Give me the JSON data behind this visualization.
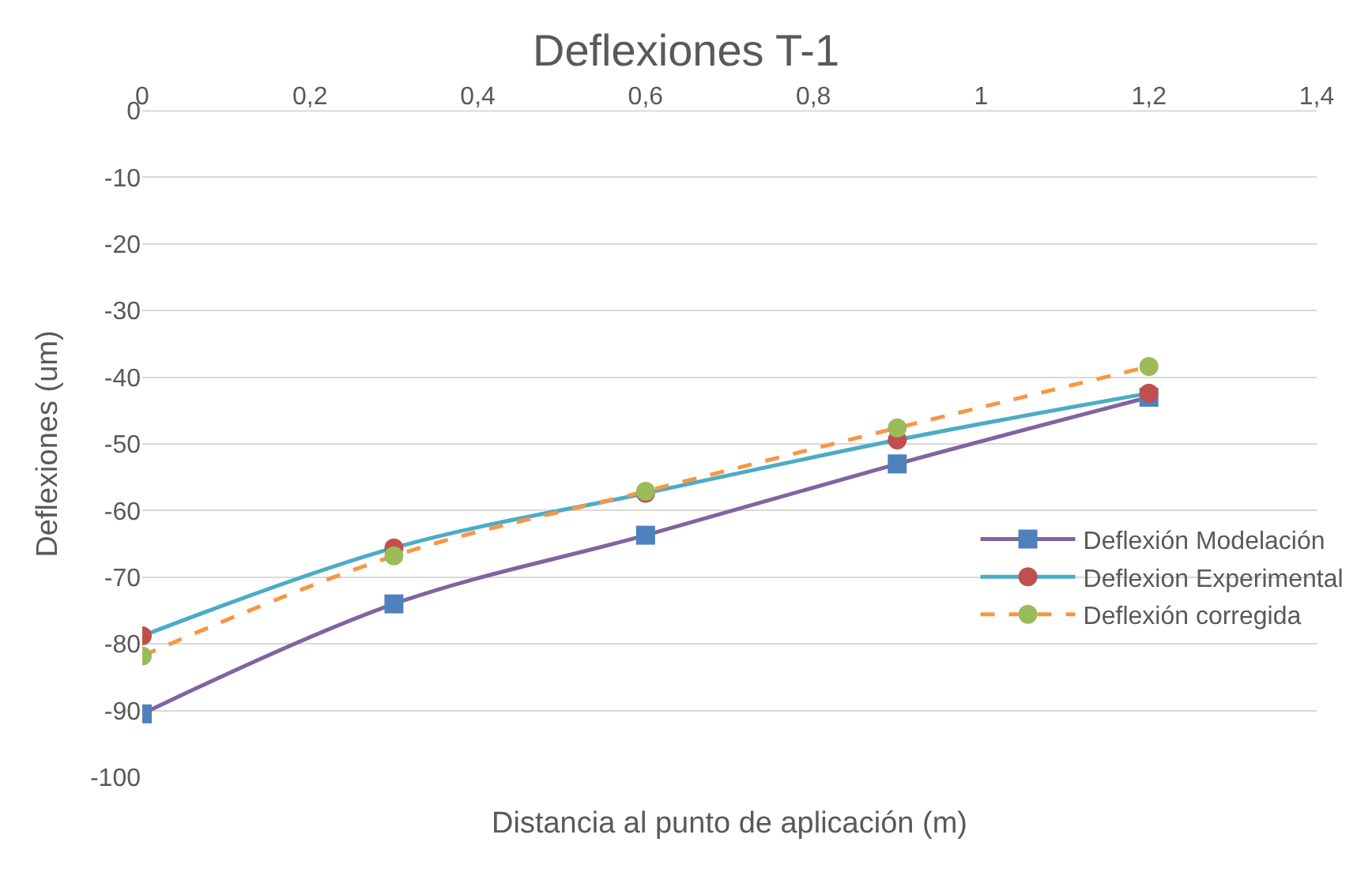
{
  "chart_data": {
    "type": "line",
    "title": "Deflexiones T-1",
    "xlabel": "Distancia al punto de aplicación (m)",
    "ylabel": "Deflexiones (um)",
    "x": [
      0,
      0.3,
      0.6,
      0.9,
      1.2
    ],
    "series": [
      {
        "name": "Deflexión Modelación",
        "color": "#8064a2",
        "colors": [
          "#4f81bd",
          "#4f81bd",
          "#4f81bd",
          "#4f81bd",
          "#4f81bd"
        ],
        "marker": "square",
        "line_style": "solid",
        "values": [
          -90.5,
          -74,
          -63.7,
          -53,
          -43
        ]
      },
      {
        "name": "Deflexion Experimental",
        "color": "#4bacc6",
        "colors": [
          "#c0504d",
          "#c0504d",
          "#c0504d",
          "#c0504d",
          "#c0504d"
        ],
        "marker": "circle",
        "line_style": "solid",
        "values": [
          -78.8,
          -65.6,
          -57.4,
          -49.4,
          -42.4
        ]
      },
      {
        "name": "Deflexión corregida",
        "color": "#f79646",
        "colors": [
          "#9bbb59",
          "#9bbb59",
          "#9bbb59",
          "#9bbb59",
          "#9bbb59"
        ],
        "marker": "circle",
        "line_style": "dashed",
        "values": [
          -81.8,
          -66.8,
          -57.1,
          -47.6,
          -38.4
        ]
      }
    ],
    "xlim": [
      0,
      1.4
    ],
    "xticks": [
      0,
      {
        "value": 0.2,
        "label": "0,2"
      },
      {
        "value": 0.4,
        "label": "0,4"
      },
      {
        "value": 0.6,
        "label": "0,6"
      },
      {
        "value": 0.8,
        "label": "0,8"
      },
      1,
      {
        "value": 1.2,
        "label": "1,2"
      },
      {
        "value": 1.4,
        "label": "1,4"
      }
    ],
    "ylim": [
      -100,
      0
    ],
    "yticks": [
      0,
      -10,
      -20,
      -30,
      -40,
      -50,
      -60,
      -70,
      -80,
      -90,
      -100
    ],
    "grid": "y",
    "legend": "right"
  }
}
